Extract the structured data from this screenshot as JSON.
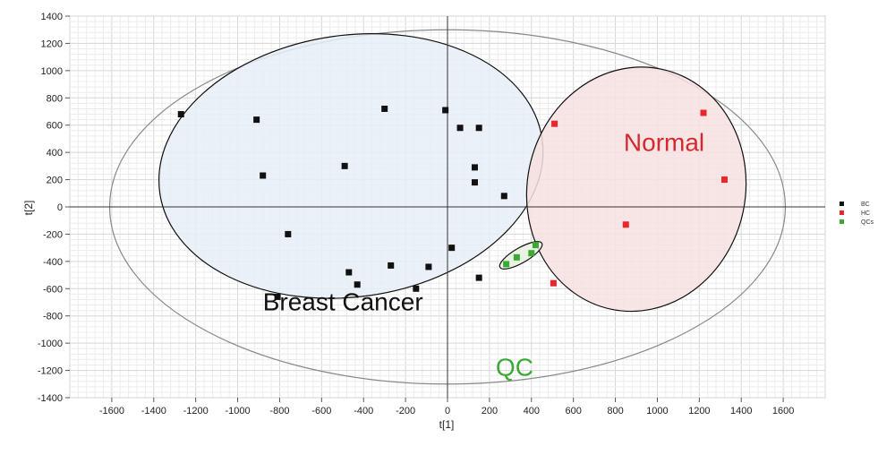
{
  "chart_data": {
    "type": "scatter",
    "title": "",
    "xlabel": "t[1]",
    "ylabel": "t[2]",
    "xlim": [
      -1800,
      1800
    ],
    "ylim": [
      -1400,
      1400
    ],
    "x_ticks": [
      -1600,
      -1400,
      -1200,
      -1000,
      -800,
      -600,
      -400,
      -200,
      0,
      200,
      400,
      600,
      800,
      1000,
      1200,
      1400,
      1600
    ],
    "y_ticks": [
      1400,
      1200,
      1000,
      800,
      600,
      400,
      200,
      0,
      -200,
      -400,
      -600,
      -800,
      -1000,
      -1200,
      -1400
    ],
    "grid": true,
    "legend_position": "right",
    "series": [
      {
        "name": "BC",
        "color": "#111111",
        "points": [
          [
            -1270,
            680
          ],
          [
            -910,
            640
          ],
          [
            -880,
            230
          ],
          [
            -760,
            -200
          ],
          [
            -810,
            -660
          ],
          [
            -490,
            300
          ],
          [
            -470,
            -480
          ],
          [
            -430,
            -570
          ],
          [
            -300,
            720
          ],
          [
            -270,
            -430
          ],
          [
            -150,
            -600
          ],
          [
            -90,
            -440
          ],
          [
            -10,
            710
          ],
          [
            60,
            580
          ],
          [
            20,
            -300
          ],
          [
            130,
            290
          ],
          [
            130,
            180
          ],
          [
            150,
            580
          ],
          [
            150,
            -520
          ],
          [
            270,
            80
          ]
        ]
      },
      {
        "name": "HC",
        "color": "#e8262c",
        "points": [
          [
            510,
            610
          ],
          [
            1220,
            690
          ],
          [
            1320,
            200
          ],
          [
            850,
            -130
          ],
          [
            505,
            -560
          ]
        ]
      },
      {
        "name": "QCs",
        "color": "#3aaa35",
        "points": [
          [
            280,
            -420
          ],
          [
            330,
            -370
          ],
          [
            400,
            -340
          ],
          [
            420,
            -280
          ]
        ]
      }
    ],
    "annotations": [
      {
        "text": "Breast Cancer",
        "color": "#111111",
        "x": -880,
        "y": -760
      },
      {
        "text": "Normal",
        "color": "#d42a2e",
        "x": 840,
        "y": 410
      },
      {
        "text": "QC",
        "color": "#3aaa35",
        "x": 230,
        "y": -1240
      }
    ],
    "ellipses": [
      {
        "group": "outer",
        "cx": 0,
        "cy": 0,
        "rx": 1610,
        "ry": 1300,
        "stroke": "#888888",
        "fill": "none"
      },
      {
        "group": "Breast Cancer",
        "cx": -460,
        "cy": 300,
        "rx": 920,
        "ry": 960,
        "rotate": -8,
        "stroke": "#111111",
        "fill": "#e8eff7"
      },
      {
        "group": "Normal",
        "cx": 900,
        "cy": 130,
        "rx": 520,
        "ry": 900,
        "rotate": 12,
        "stroke": "#111111",
        "fill": "#f7e1e1"
      },
      {
        "group": "QC",
        "cx": 350,
        "cy": -355,
        "rx": 115,
        "ry": 55,
        "rotate": -30,
        "stroke": "#111111",
        "fill": "#e6f1e2"
      }
    ]
  }
}
